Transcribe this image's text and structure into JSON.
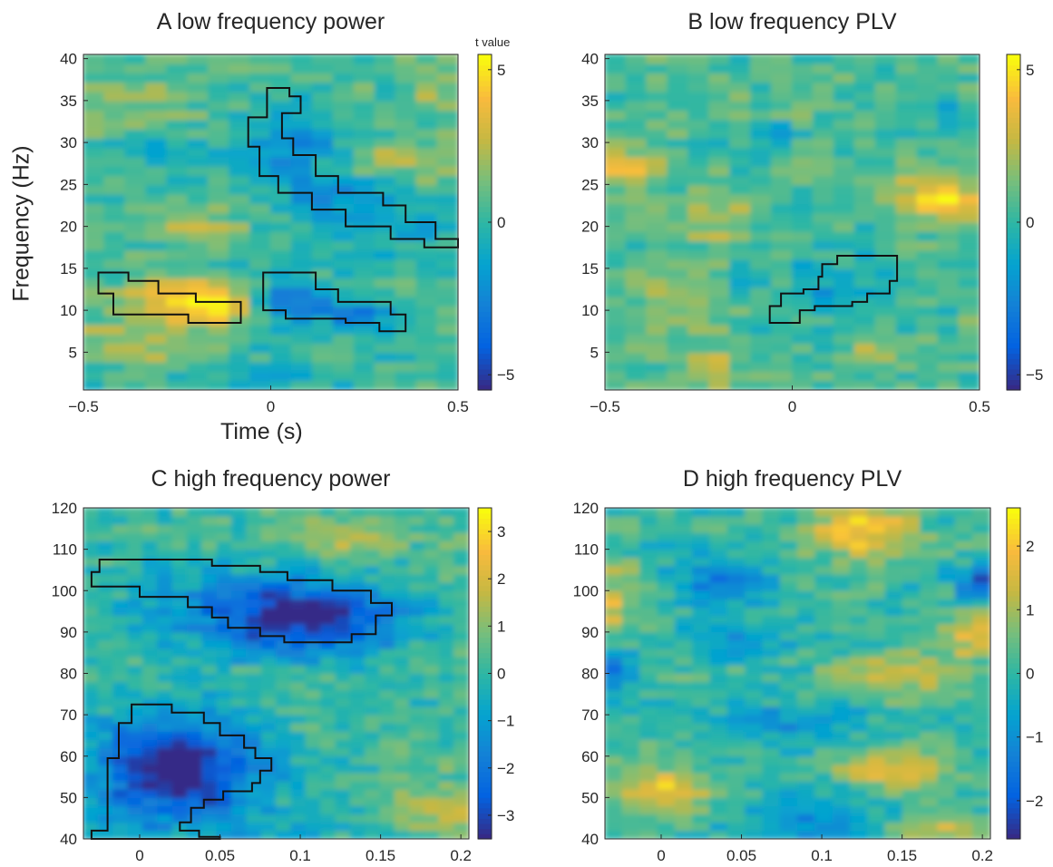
{
  "colormap": "parula",
  "charts": [
    {
      "title": "A low frequency power",
      "type": "heatmap",
      "xlabel": "Time (s)",
      "ylabel": "Frequency (Hz)",
      "xlim": [
        -0.5,
        0.5
      ],
      "ylim": [
        0.5,
        40.5
      ],
      "xticks": [
        "-0.5",
        "0",
        "0.5"
      ],
      "yticks": [
        "5",
        "10",
        "15",
        "20",
        "25",
        "30",
        "35",
        "40"
      ],
      "colorbar_title": "t value",
      "colorbar_ticks": [
        "5",
        "0",
        "-5"
      ],
      "clim": [
        -5.5,
        5.5
      ],
      "baseline_value": 0.4,
      "blobs": [
        {
          "x": -0.22,
          "y": 11,
          "sx": 0.12,
          "sy": 2.0,
          "value": 4.3
        },
        {
          "x": -0.15,
          "y": 10.5,
          "sx": 0.06,
          "sy": 1.5,
          "value": 1.8
        },
        {
          "x": -0.4,
          "y": 6,
          "sx": 0.15,
          "sy": 1.5,
          "value": 2.2
        },
        {
          "x": 0.05,
          "y": 10.5,
          "sx": 0.08,
          "sy": 2.5,
          "value": -3.2
        },
        {
          "x": 0.25,
          "y": 9.5,
          "sx": 0.08,
          "sy": 1.8,
          "value": -2.5
        },
        {
          "x": 0.05,
          "y": 30,
          "sx": 0.08,
          "sy": 3.5,
          "value": -2.5
        },
        {
          "x": 0.18,
          "y": 23,
          "sx": 0.1,
          "sy": 3.0,
          "value": -2.2
        },
        {
          "x": 0.38,
          "y": 19.5,
          "sx": 0.08,
          "sy": 2.0,
          "value": -1.8
        },
        {
          "x": -0.2,
          "y": 20.5,
          "sx": 0.1,
          "sy": 2.0,
          "value": 1.5
        },
        {
          "x": 0.35,
          "y": 28,
          "sx": 0.1,
          "sy": 2.0,
          "value": 1.6
        },
        {
          "x": -0.4,
          "y": 34,
          "sx": 0.15,
          "sy": 2.0,
          "value": 1.3
        },
        {
          "x": 0.45,
          "y": 37,
          "sx": 0.08,
          "sy": 2.0,
          "value": 1.4
        },
        {
          "x": 0.0,
          "y": 2,
          "sx": 0.15,
          "sy": 1.5,
          "value": -1.5
        },
        {
          "x": -0.3,
          "y": 30,
          "sx": 0.08,
          "sy": 2.0,
          "value": -1.2
        }
      ],
      "clusters": [
        [
          [
            -0.46,
            14.5
          ],
          [
            -0.38,
            14.5
          ],
          [
            -0.38,
            13.5
          ],
          [
            -0.3,
            13.5
          ],
          [
            -0.3,
            12
          ],
          [
            -0.2,
            12
          ],
          [
            -0.2,
            11
          ],
          [
            -0.08,
            11
          ],
          [
            -0.08,
            8.5
          ],
          [
            -0.22,
            8.5
          ],
          [
            -0.22,
            9.5
          ],
          [
            -0.42,
            9.5
          ],
          [
            -0.42,
            12
          ],
          [
            -0.46,
            12
          ]
        ],
        [
          [
            -0.02,
            14.5
          ],
          [
            0.12,
            14.5
          ],
          [
            0.12,
            12.5
          ],
          [
            0.18,
            12.5
          ],
          [
            0.18,
            11
          ],
          [
            0.32,
            11
          ],
          [
            0.32,
            9.5
          ],
          [
            0.36,
            9.5
          ],
          [
            0.36,
            7.5
          ],
          [
            0.29,
            7.5
          ],
          [
            0.29,
            8.5
          ],
          [
            0.2,
            8.5
          ],
          [
            0.2,
            9
          ],
          [
            0.04,
            9
          ],
          [
            0.04,
            10
          ],
          [
            -0.02,
            10
          ]
        ],
        [
          [
            -0.01,
            36.5
          ],
          [
            0.05,
            36.5
          ],
          [
            0.05,
            35.5
          ],
          [
            0.08,
            35.5
          ],
          [
            0.08,
            33.5
          ],
          [
            0.03,
            33.5
          ],
          [
            0.03,
            30.5
          ],
          [
            0.06,
            30.5
          ],
          [
            0.06,
            28.5
          ],
          [
            0.12,
            28.5
          ],
          [
            0.12,
            26
          ],
          [
            0.18,
            26
          ],
          [
            0.18,
            24
          ],
          [
            0.3,
            24
          ],
          [
            0.3,
            22.5
          ],
          [
            0.36,
            22.5
          ],
          [
            0.36,
            20.5
          ],
          [
            0.44,
            20.5
          ],
          [
            0.44,
            18.5
          ],
          [
            0.5,
            18.5
          ],
          [
            0.5,
            17.5
          ],
          [
            0.41,
            17.5
          ],
          [
            0.41,
            18.5
          ],
          [
            0.32,
            18.5
          ],
          [
            0.32,
            20
          ],
          [
            0.2,
            20
          ],
          [
            0.2,
            22
          ],
          [
            0.11,
            22
          ],
          [
            0.11,
            24
          ],
          [
            0.02,
            24
          ],
          [
            0.02,
            26
          ],
          [
            -0.03,
            26
          ],
          [
            -0.03,
            29.5
          ],
          [
            -0.06,
            29.5
          ],
          [
            -0.06,
            33
          ],
          [
            -0.01,
            33
          ]
        ]
      ]
    },
    {
      "title": "B low frequency PLV",
      "type": "heatmap",
      "xlim": [
        -0.5,
        0.5
      ],
      "ylim": [
        0.5,
        40.5
      ],
      "xticks": [
        "-0.5",
        "0",
        "0.5"
      ],
      "yticks": [
        "5",
        "10",
        "15",
        "20",
        "25",
        "30",
        "35",
        "40"
      ],
      "colorbar_ticks": [
        "5",
        "0",
        "-5"
      ],
      "clim": [
        -5.5,
        5.5
      ],
      "baseline_value": 0.6,
      "blobs": [
        {
          "x": -0.45,
          "y": 27,
          "sx": 0.08,
          "sy": 1.5,
          "value": 3.2
        },
        {
          "x": 0.43,
          "y": 23,
          "sx": 0.06,
          "sy": 1.5,
          "value": 4.3
        },
        {
          "x": 0.3,
          "y": 24.5,
          "sx": 0.06,
          "sy": 1.5,
          "value": 2.2
        },
        {
          "x": -0.2,
          "y": 21,
          "sx": 0.08,
          "sy": 2.0,
          "value": 1.8
        },
        {
          "x": -0.05,
          "y": 31,
          "sx": 0.03,
          "sy": 1.0,
          "value": -3.5
        },
        {
          "x": 0.12,
          "y": 12.5,
          "sx": 0.12,
          "sy": 3.0,
          "value": -1.8
        },
        {
          "x": -0.3,
          "y": 12,
          "sx": 0.08,
          "sy": 2.5,
          "value": 1.4
        },
        {
          "x": -0.2,
          "y": 3.5,
          "sx": 0.06,
          "sy": 1.5,
          "value": 2.0
        },
        {
          "x": 0.2,
          "y": 5,
          "sx": 0.06,
          "sy": 1.5,
          "value": 1.6
        },
        {
          "x": -0.15,
          "y": 14,
          "sx": 0.04,
          "sy": 1.0,
          "value": -2.0
        },
        {
          "x": 0.4,
          "y": 34,
          "sx": 0.06,
          "sy": 1.5,
          "value": -1.5
        }
      ],
      "clusters": [
        [
          [
            0.07,
            14
          ],
          [
            0.08,
            14
          ],
          [
            0.08,
            15.5
          ],
          [
            0.12,
            15.5
          ],
          [
            0.12,
            16.5
          ],
          [
            0.28,
            16.5
          ],
          [
            0.28,
            13.5
          ],
          [
            0.26,
            13.5
          ],
          [
            0.26,
            12
          ],
          [
            0.2,
            12
          ],
          [
            0.2,
            11
          ],
          [
            0.16,
            11
          ],
          [
            0.16,
            10.5
          ],
          [
            0.06,
            10.5
          ],
          [
            0.06,
            10
          ],
          [
            0.02,
            10
          ],
          [
            0.02,
            8.5
          ],
          [
            -0.06,
            8.5
          ],
          [
            -0.06,
            10.5
          ],
          [
            -0.03,
            10.5
          ],
          [
            -0.03,
            12
          ],
          [
            0.03,
            12
          ],
          [
            0.03,
            12.5
          ],
          [
            0.07,
            12.5
          ]
        ]
      ]
    },
    {
      "title": "C high frequency power",
      "type": "heatmap",
      "xlim": [
        -0.035,
        0.205
      ],
      "ylim": [
        40,
        120
      ],
      "xticks": [
        "0",
        "0.05",
        "0.1",
        "0.15",
        "0.2"
      ],
      "yticks": [
        "40",
        "50",
        "60",
        "70",
        "80",
        "90",
        "100",
        "110",
        "120"
      ],
      "colorbar_ticks": [
        "3",
        "2",
        "1",
        "0",
        "-1",
        "-2",
        "-3"
      ],
      "clim": [
        -3.5,
        3.5
      ],
      "baseline_value": 0.2,
      "blobs": [
        {
          "x": 0.105,
          "y": 93,
          "sx": 0.04,
          "sy": 6,
          "value": -3.2
        },
        {
          "x": 0.06,
          "y": 97,
          "sx": 0.06,
          "sy": 7,
          "value": -1.3
        },
        {
          "x": 0.03,
          "y": 57,
          "sx": 0.035,
          "sy": 8,
          "value": -3.4
        },
        {
          "x": 0.0,
          "y": 55,
          "sx": 0.04,
          "sy": 14,
          "value": -1.0
        },
        {
          "x": 0.13,
          "y": 112,
          "sx": 0.03,
          "sy": 4,
          "value": 1.2
        },
        {
          "x": 0.19,
          "y": 47,
          "sx": 0.03,
          "sy": 5,
          "value": 1.4
        },
        {
          "x": 0.1,
          "y": 40,
          "sx": 0.04,
          "sy": 5,
          "value": -0.8
        }
      ],
      "clusters": [
        [
          [
            -0.03,
            104.5
          ],
          [
            -0.025,
            104.5
          ],
          [
            -0.025,
            107.5
          ],
          [
            0.045,
            107.5
          ],
          [
            0.045,
            106
          ],
          [
            0.075,
            106
          ],
          [
            0.075,
            104.5
          ],
          [
            0.092,
            104.5
          ],
          [
            0.092,
            102.5
          ],
          [
            0.12,
            102.5
          ],
          [
            0.12,
            100
          ],
          [
            0.144,
            100
          ],
          [
            0.144,
            97
          ],
          [
            0.157,
            97
          ],
          [
            0.157,
            94
          ],
          [
            0.147,
            94
          ],
          [
            0.147,
            89.5
          ],
          [
            0.132,
            89.5
          ],
          [
            0.132,
            87.5
          ],
          [
            0.09,
            87.5
          ],
          [
            0.09,
            89
          ],
          [
            0.075,
            89
          ],
          [
            0.075,
            91
          ],
          [
            0.055,
            91
          ],
          [
            0.055,
            93.5
          ],
          [
            0.045,
            93.5
          ],
          [
            0.045,
            96
          ],
          [
            0.03,
            96
          ],
          [
            0.03,
            98.5
          ],
          [
            0.0,
            98.5
          ],
          [
            0.0,
            101
          ],
          [
            -0.03,
            101
          ]
        ],
        [
          [
            -0.025,
            42
          ],
          [
            -0.02,
            42
          ],
          [
            -0.02,
            59.5
          ],
          [
            -0.013,
            59.5
          ],
          [
            -0.013,
            68
          ],
          [
            -0.005,
            68
          ],
          [
            -0.005,
            72.5
          ],
          [
            0.02,
            72.5
          ],
          [
            0.02,
            70.5
          ],
          [
            0.04,
            70.5
          ],
          [
            0.04,
            68
          ],
          [
            0.05,
            68
          ],
          [
            0.05,
            65
          ],
          [
            0.065,
            65
          ],
          [
            0.065,
            62
          ],
          [
            0.072,
            62
          ],
          [
            0.072,
            59.5
          ],
          [
            0.082,
            59.5
          ],
          [
            0.082,
            56.5
          ],
          [
            0.075,
            56.5
          ],
          [
            0.075,
            53.5
          ],
          [
            0.07,
            53.5
          ],
          [
            0.07,
            51.5
          ],
          [
            0.052,
            51.5
          ],
          [
            0.052,
            49.5
          ],
          [
            0.04,
            49.5
          ],
          [
            0.04,
            47.5
          ],
          [
            0.032,
            47.5
          ],
          [
            0.032,
            44
          ],
          [
            0.025,
            44
          ],
          [
            0.025,
            42
          ],
          [
            0.037,
            42
          ],
          [
            0.037,
            40.5
          ],
          [
            0.05,
            40.5
          ],
          [
            0.05,
            40
          ],
          [
            -0.03,
            40
          ],
          [
            -0.03,
            42
          ]
        ]
      ]
    },
    {
      "title": "D high frequency PLV",
      "type": "heatmap",
      "xlim": [
        -0.035,
        0.205
      ],
      "ylim": [
        40,
        120
      ],
      "xticks": [
        "0",
        "0.05",
        "0.1",
        "0.15",
        "0.2"
      ],
      "yticks": [
        "40",
        "50",
        "60",
        "70",
        "80",
        "90",
        "100",
        "110",
        "120"
      ],
      "colorbar_ticks": [
        "2",
        "1",
        "0",
        "-1",
        "-2"
      ],
      "clim": [
        -2.6,
        2.6
      ],
      "baseline_value": 0.1,
      "blobs": [
        {
          "x": 0.125,
          "y": 115,
          "sx": 0.02,
          "sy": 5,
          "value": 2.0
        },
        {
          "x": 0.0,
          "y": 52,
          "sx": 0.02,
          "sy": 4,
          "value": 1.8
        },
        {
          "x": 0.145,
          "y": 56,
          "sx": 0.025,
          "sy": 3.5,
          "value": 1.8
        },
        {
          "x": 0.15,
          "y": 80,
          "sx": 0.03,
          "sy": 4,
          "value": 1.4
        },
        {
          "x": 0.2,
          "y": 90,
          "sx": 0.015,
          "sy": 4,
          "value": 1.6
        },
        {
          "x": -0.03,
          "y": 95,
          "sx": 0.01,
          "sy": 8,
          "value": 1.3
        },
        {
          "x": 0.2,
          "y": 102,
          "sx": 0.01,
          "sy": 3,
          "value": -2.3
        },
        {
          "x": -0.03,
          "y": 80,
          "sx": 0.01,
          "sy": 5,
          "value": -1.8
        },
        {
          "x": 0.035,
          "y": 103,
          "sx": 0.02,
          "sy": 4,
          "value": -1.4
        },
        {
          "x": 0.1,
          "y": 45,
          "sx": 0.03,
          "sy": 5,
          "value": -1.2
        },
        {
          "x": 0.08,
          "y": 68,
          "sx": 0.04,
          "sy": 4,
          "value": -0.9
        },
        {
          "x": 0.18,
          "y": 42,
          "sx": 0.03,
          "sy": 3,
          "value": 1.3
        },
        {
          "x": 0.05,
          "y": 88,
          "sx": 0.02,
          "sy": 3,
          "value": -1.0
        }
      ],
      "clusters": []
    }
  ]
}
